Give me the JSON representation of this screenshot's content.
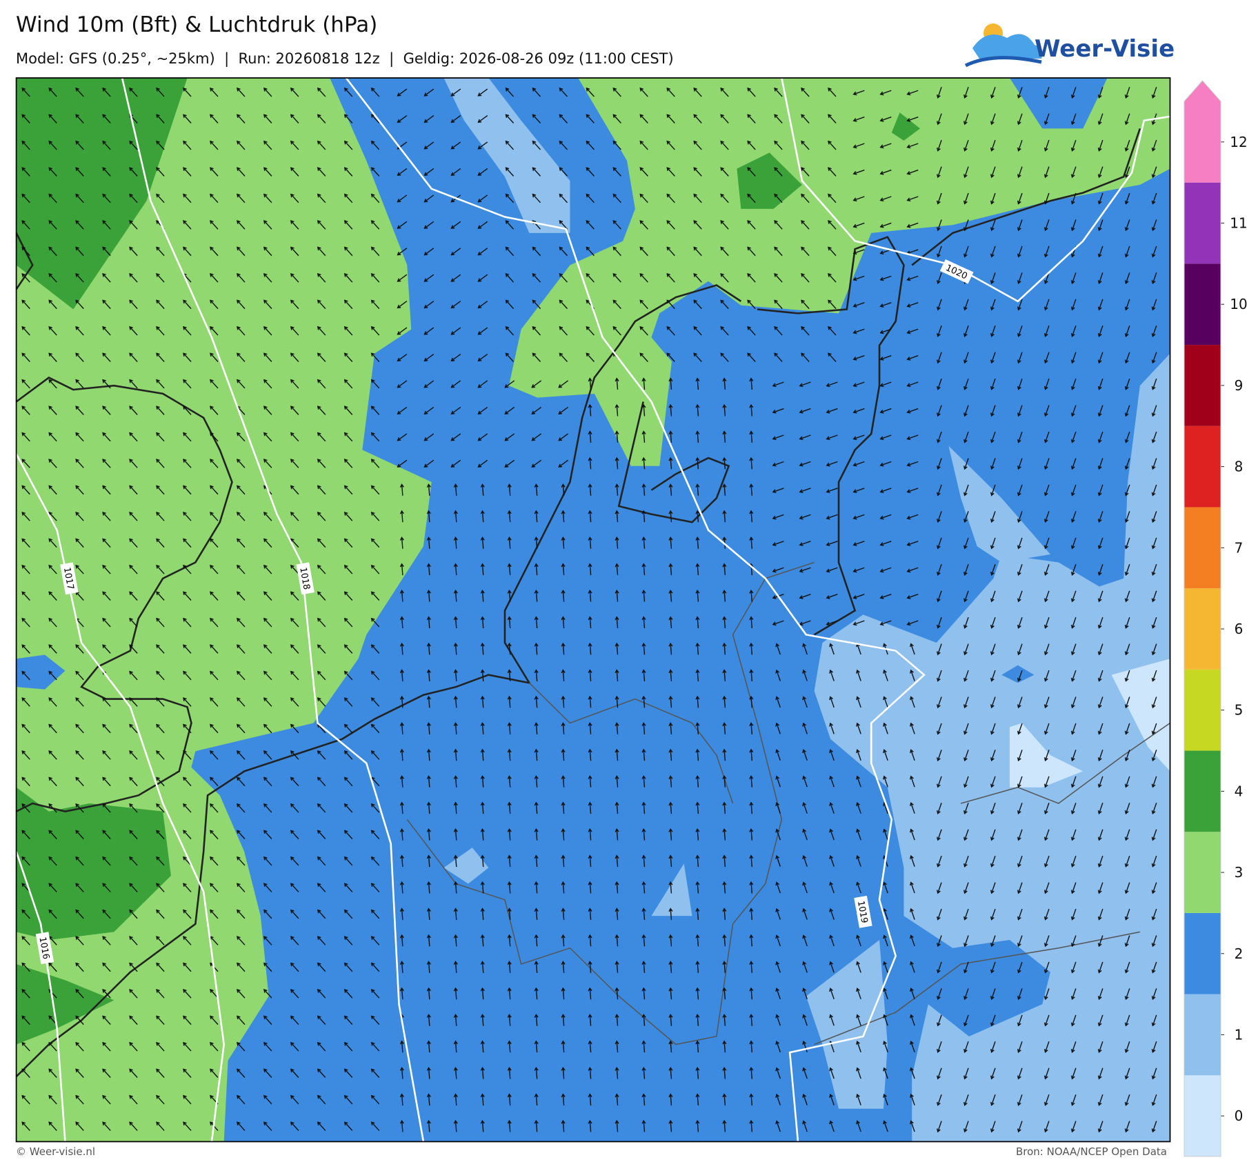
{
  "header": {
    "title": "Wind 10m (Bft) & Luchtdruk (hPa)",
    "subtitle": "Model: GFS (0.25°, ~25km)  |  Run: 20260818 12z  |  Geldig: 2026-08-26 09z (11:00 CEST)",
    "logo": "Weer-Visie"
  },
  "colorbar": {
    "ticks": [
      0,
      1,
      2,
      3,
      4,
      5,
      6,
      7,
      8,
      9,
      10,
      11,
      12
    ],
    "colors": [
      "#cde6fb",
      "#8fc0ee",
      "#3d8be0",
      "#90d86f",
      "#3ba23a",
      "#c7d823",
      "#f5b731",
      "#f47e22",
      "#de2221",
      "#a1001a",
      "#570060",
      "#9334b8",
      "#f67fc3"
    ]
  },
  "isobar_labels": [
    1016,
    1017,
    1018,
    1019,
    1020
  ],
  "footer": {
    "left": "© Weer-visie.nl",
    "right": "Bron: NOAA/NCEP Open Data"
  }
}
